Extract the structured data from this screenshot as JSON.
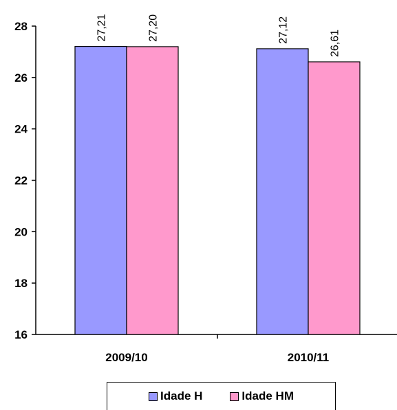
{
  "chart_data": {
    "type": "bar",
    "categories": [
      "2009/10",
      "2010/11"
    ],
    "series": [
      {
        "name": "Idade H",
        "values": [
          27.21,
          27.12
        ],
        "labels": [
          "27,21",
          "27,12"
        ],
        "color": "#9999ff"
      },
      {
        "name": "Idade HM",
        "values": [
          27.2,
          26.61
        ],
        "labels": [
          "27,20",
          "26,61"
        ],
        "color": "#ff99cc"
      }
    ],
    "ylim": [
      16,
      28
    ],
    "yticks": [
      "16",
      "18",
      "20",
      "22",
      "24",
      "26",
      "28"
    ],
    "grid": false,
    "legend_position": "bottom"
  }
}
